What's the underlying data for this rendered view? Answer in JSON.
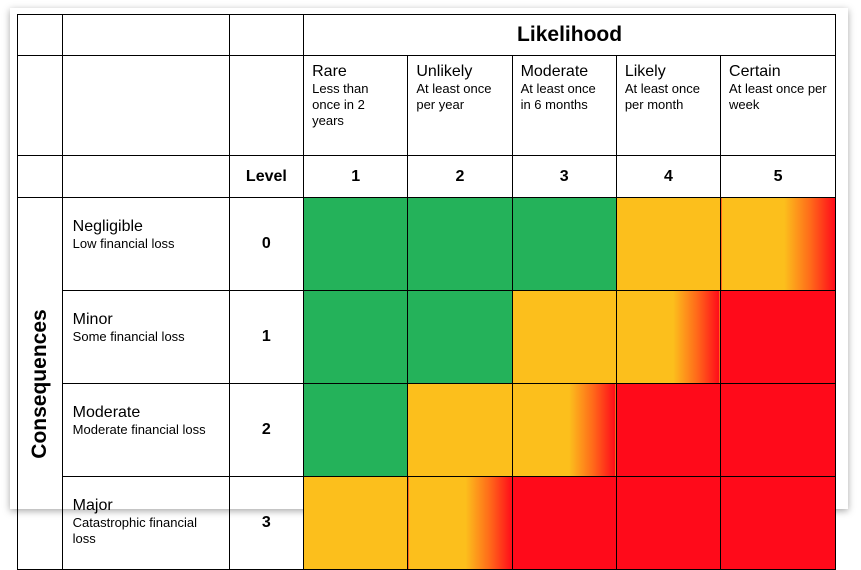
{
  "likelihood_title": "Likelihood",
  "consequences_title": "Consequences",
  "level_header": "Level",
  "likelihood": [
    {
      "name": "Rare",
      "desc": "Less than once in 2 years",
      "num": "1"
    },
    {
      "name": "Unlikely",
      "desc": "At least once per year",
      "num": "2"
    },
    {
      "name": "Moderate",
      "desc": "At least once in 6 months",
      "num": "3"
    },
    {
      "name": "Likely",
      "desc": "At least once per month",
      "num": "4"
    },
    {
      "name": "Certain",
      "desc": "At least once per week",
      "num": "5"
    }
  ],
  "consequences": [
    {
      "name": "Negligible",
      "desc": "Low financial loss",
      "level": "0"
    },
    {
      "name": "Minor",
      "desc": "Some financial loss",
      "level": "1"
    },
    {
      "name": "Moderate",
      "desc": "Moderate financial loss",
      "level": "2"
    },
    {
      "name": "Major",
      "desc": "Catastrophic financial loss",
      "level": "3"
    }
  ],
  "colors": {
    "green": "#24b25a",
    "amber": "#fcbf1c",
    "red": "#ff0a1a"
  },
  "risk_grid": [
    [
      "green",
      "green",
      "green",
      "amber",
      "amber-red"
    ],
    [
      "green",
      "green",
      "amber",
      "amber-red",
      "red"
    ],
    [
      "green",
      "amber",
      "amber-red",
      "red",
      "red"
    ],
    [
      "amber",
      "amber-red",
      "red",
      "red",
      "red"
    ]
  ]
}
